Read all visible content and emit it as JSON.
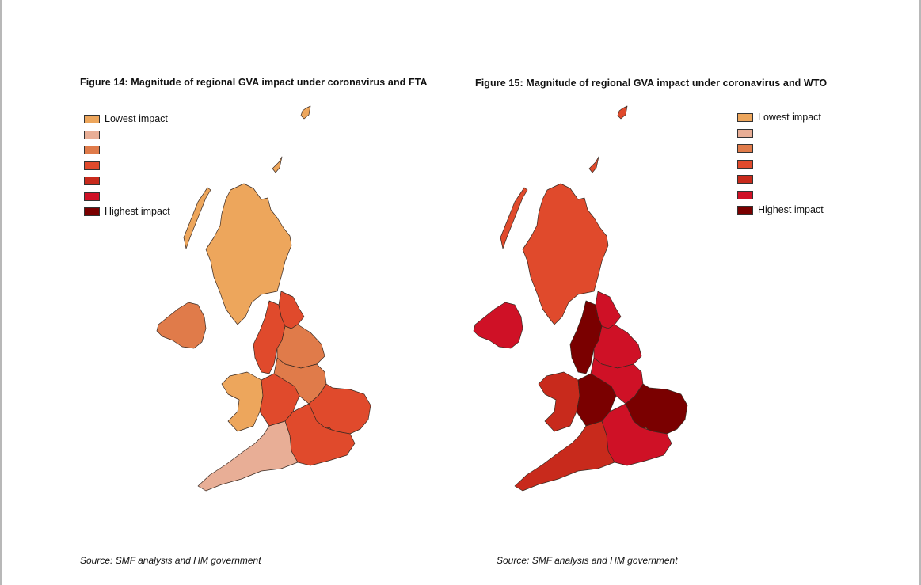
{
  "figures": [
    {
      "title": "Figure 14: Magnitude of regional GVA impact under coronavirus and FTA",
      "legend": [
        {
          "label": "Lowest impact",
          "color": "#eda65c"
        },
        {
          "label": "",
          "color": "#e8ae96"
        },
        {
          "label": "",
          "color": "#e07b4a"
        },
        {
          "label": "",
          "color": "#e04a2c"
        },
        {
          "label": "",
          "color": "#c82a1c"
        },
        {
          "label": "",
          "color": "#cf1126"
        },
        {
          "label": "Highest impact",
          "color": "#7a0000"
        }
      ],
      "regions": {
        "scotland": "#eda65c",
        "northern_ireland": "#e07b4a",
        "north_east": "#e04a2c",
        "north_west": "#e04a2c",
        "yorkshire": "#e07b4a",
        "wales": "#eda65c",
        "west_midlands": "#e04a2c",
        "east_midlands": "#e07b4a",
        "east_of_england": "#e04a2c",
        "london": "#e04a2c",
        "south_east": "#e04a2c",
        "south_west": "#e8ae96"
      },
      "source": "Source: SMF analysis and HM government"
    },
    {
      "title": "Figure 15: Magnitude of regional GVA impact under coronavirus and WTO",
      "legend": [
        {
          "label": "Lowest impact",
          "color": "#eda65c"
        },
        {
          "label": "",
          "color": "#e8ae96"
        },
        {
          "label": "",
          "color": "#e07b4a"
        },
        {
          "label": "",
          "color": "#e04a2c"
        },
        {
          "label": "",
          "color": "#c82a1c"
        },
        {
          "label": "",
          "color": "#cf1126"
        },
        {
          "label": "Highest impact",
          "color": "#7a0000"
        }
      ],
      "regions": {
        "scotland": "#e04a2c",
        "northern_ireland": "#cf1126",
        "north_east": "#cf1126",
        "north_west": "#7a0000",
        "yorkshire": "#cf1126",
        "wales": "#c82a1c",
        "west_midlands": "#7a0000",
        "east_midlands": "#cf1126",
        "east_of_england": "#7a0000",
        "london": "#e04a2c",
        "south_east": "#cf1126",
        "south_west": "#c82a1c"
      },
      "source": "Source: SMF analysis and HM government"
    }
  ]
}
